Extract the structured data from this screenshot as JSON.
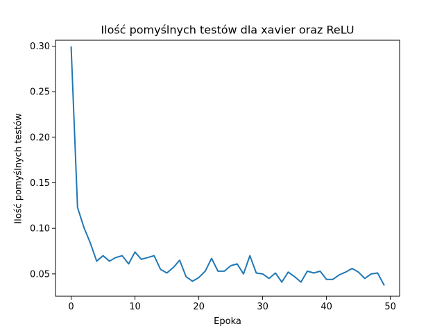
{
  "chart_data": {
    "type": "line",
    "title": "Ilość pomyślnych testów dla xavier oraz ReLU",
    "xlabel": "Epoka",
    "ylabel": "Ilość pomyślnych testów",
    "xlim": [
      -2.45,
      51.45
    ],
    "ylim": [
      0.0255,
      0.3065
    ],
    "xticks": [
      0,
      10,
      20,
      30,
      40,
      50
    ],
    "yticks": [
      0.05,
      0.1,
      0.15,
      0.2,
      0.25,
      0.3
    ],
    "ytick_labels": [
      "0.05",
      "0.10",
      "0.15",
      "0.20",
      "0.25",
      "0.30"
    ],
    "grid": false,
    "line_color": "#1f77b4",
    "series": [
      {
        "x": [
          0,
          1,
          2,
          3,
          4,
          5,
          6,
          7,
          8,
          9,
          10,
          11,
          12,
          13,
          14,
          15,
          16,
          17,
          18,
          19,
          20,
          21,
          22,
          23,
          24,
          25,
          26,
          27,
          28,
          29,
          30,
          31,
          32,
          33,
          34,
          35,
          36,
          37,
          38,
          39,
          40,
          41,
          42,
          43,
          44,
          45,
          46,
          47,
          48,
          49
        ],
        "values": [
          0.299,
          0.123,
          0.101,
          0.084,
          0.064,
          0.07,
          0.064,
          0.068,
          0.07,
          0.061,
          0.074,
          0.066,
          0.068,
          0.07,
          0.055,
          0.051,
          0.057,
          0.065,
          0.047,
          0.042,
          0.046,
          0.053,
          0.067,
          0.053,
          0.053,
          0.059,
          0.061,
          0.05,
          0.07,
          0.051,
          0.05,
          0.045,
          0.051,
          0.041,
          0.052,
          0.047,
          0.041,
          0.053,
          0.051,
          0.053,
          0.044,
          0.044,
          0.049,
          0.052,
          0.056,
          0.052,
          0.045,
          0.05,
          0.051,
          0.038
        ]
      }
    ]
  }
}
